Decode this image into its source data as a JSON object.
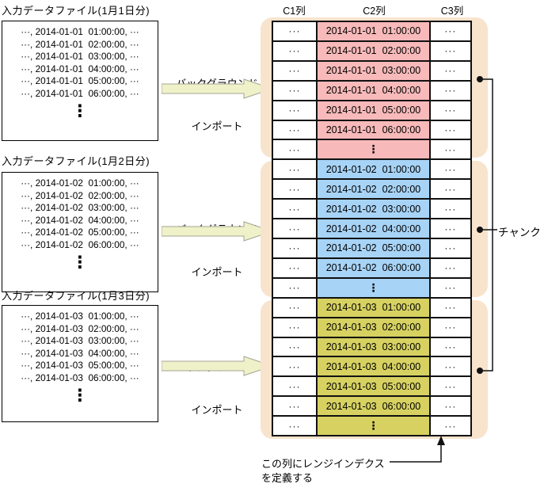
{
  "files": [
    {
      "label": "入力データファイル(1月1日分)",
      "lines": [
        "···, 2014-01-01  01:00:00, ···",
        "···, 2014-01-01  02:00:00, ···",
        "···, 2014-01-01  03:00:00, ···",
        "···, 2014-01-01  04:00:00, ···",
        "···, 2014-01-01  05:00:00, ···",
        "···, 2014-01-01  06:00:00, ···"
      ]
    },
    {
      "label": "入力データファイル(1月2日分)",
      "lines": [
        "···, 2014-01-02  01:00:00, ···",
        "···, 2014-01-02  02:00:00, ···",
        "···, 2014-01-02  03:00:00, ···",
        "···, 2014-01-02  04:00:00, ···",
        "···, 2014-01-02  05:00:00, ···",
        "···, 2014-01-02  06:00:00, ···"
      ]
    },
    {
      "label": "入力データファイル(1月3日分)",
      "lines": [
        "···, 2014-01-03  01:00:00, ···",
        "···, 2014-01-03  02:00:00, ···",
        "···, 2014-01-03  03:00:00, ···",
        "···, 2014-01-03  04:00:00, ···",
        "···, 2014-01-03  05:00:00, ···",
        "···, 2014-01-03  06:00:00, ···"
      ]
    }
  ],
  "import_arrow": {
    "line1": "バックグラウンド",
    "line2": "インポート"
  },
  "table": {
    "headers": [
      "C1列",
      "C2列",
      "C3列"
    ],
    "ellipsis_h": "···",
    "vertical_ellipsis": "⋮",
    "chunks": [
      {
        "color": "#f7b9b9",
        "rows": [
          "2014-01-01  01:00:00",
          "2014-01-01  02:00:00",
          "2014-01-01  03:00:00",
          "2014-01-01  04:00:00",
          "2014-01-01  05:00:00",
          "2014-01-01  06:00:00"
        ]
      },
      {
        "color": "#a7d3f6",
        "rows": [
          "2014-01-02  01:00:00",
          "2014-01-02  02:00:00",
          "2014-01-02  03:00:00",
          "2014-01-02  04:00:00",
          "2014-01-02  05:00:00",
          "2014-01-02  06:00:00"
        ]
      },
      {
        "color": "#d6d161",
        "rows": [
          "2014-01-03  01:00:00",
          "2014-01-03  02:00:00",
          "2014-01-03  03:00:00",
          "2014-01-03  04:00:00",
          "2014-01-03  05:00:00",
          "2014-01-03  06:00:00"
        ]
      }
    ]
  },
  "chunk_label": "チャンク",
  "range_index_note": {
    "line1": "この列にレンジインデクス",
    "line2": "を定義する"
  },
  "colors": {
    "container_peach": "#f8e3cd",
    "arrow_fill": "#eff1c8",
    "arrow_stroke": "#a5a595",
    "chunk1_pink": "#f7b9b9",
    "chunk2_blue": "#a7d3f6",
    "chunk3_olive": "#d6d161",
    "line_black": "#111111"
  }
}
